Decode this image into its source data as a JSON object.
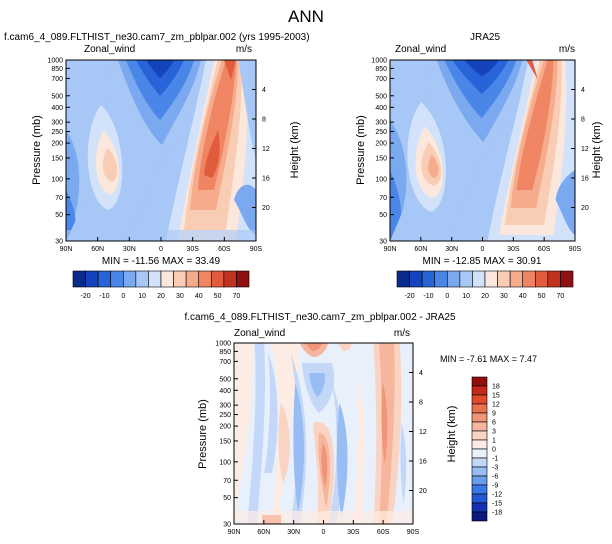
{
  "page_title": "ANN",
  "colors": {
    "zonal_wind": [
      "#0a2a8c",
      "#1543bd",
      "#2664d8",
      "#4a86e8",
      "#7aa9f0",
      "#a7c7f6",
      "#d2e2fa",
      "#fbe7dc",
      "#f9ccb4",
      "#f5ab8c",
      "#ef8562",
      "#e05c3c",
      "#c0331f",
      "#8f1111"
    ],
    "difference": [
      "#0a1a7a",
      "#1433b0",
      "#2457d6",
      "#3c78e6",
      "#6a9cee",
      "#97bdf3",
      "#c3d8f8",
      "#e8f0fc",
      "#fdece4",
      "#fad3c2",
      "#f6b69e",
      "#f19477",
      "#ea7052",
      "#df4a2e",
      "#c42816",
      "#8f0f0a"
    ]
  },
  "chart_data": [
    {
      "type": "heatmap",
      "title": "f.cam6_4_089.FLTHIST_ne30.cam7_zm_pblpar.002 (yrs 1995-2003)",
      "corner_left": "Zonal_wind",
      "corner_right": "m/s",
      "ylabel": "Pressure (mb)",
      "ylabel_right": "Height (km)",
      "x_ticks": [
        "90N",
        "60N",
        "30N",
        "0",
        "30S",
        "60S",
        "90S"
      ],
      "y_ticks": [
        "30",
        "50",
        "70",
        "100",
        "150",
        "200",
        "250",
        "300",
        "400",
        "500",
        "700",
        "850",
        "1000"
      ],
      "height_ticks": [
        "20",
        "16",
        "12",
        "8",
        "4"
      ],
      "min_max": "MIN = -11.56   MAX = 33.49",
      "colorbar_labels": [
        "-20",
        "-10",
        "0",
        "10",
        "20",
        "30",
        "40",
        "50",
        "70"
      ]
    },
    {
      "type": "heatmap",
      "title": "JRA25",
      "corner_left": "Zonal_wind",
      "corner_right": "m/s",
      "ylabel": "Pressure (mb)",
      "ylabel_right": "Height (km)",
      "x_ticks": [
        "90N",
        "60N",
        "30N",
        "0",
        "30S",
        "60S",
        "90S"
      ],
      "y_ticks": [
        "30",
        "50",
        "70",
        "100",
        "150",
        "200",
        "250",
        "300",
        "400",
        "500",
        "700",
        "850",
        "1000"
      ],
      "height_ticks": [
        "20",
        "16",
        "12",
        "8",
        "4"
      ],
      "min_max": "MIN = -12.85   MAX = 30.91",
      "colorbar_labels": [
        "-20",
        "-10",
        "0",
        "10",
        "20",
        "30",
        "40",
        "50",
        "70"
      ]
    },
    {
      "type": "heatmap",
      "title": "f.cam6_4_089.FLTHIST_ne30.cam7_zm_pblpar.002 - JRA25",
      "corner_left": "Zonal_wind",
      "corner_right": "m/s",
      "ylabel": "Pressure (mb)",
      "ylabel_right": "Height (km)",
      "x_ticks": [
        "90N",
        "60N",
        "30N",
        "0",
        "30S",
        "60S",
        "90S"
      ],
      "y_ticks": [
        "30",
        "50",
        "70",
        "100",
        "150",
        "200",
        "250",
        "300",
        "400",
        "500",
        "700",
        "850",
        "1000"
      ],
      "height_ticks": [
        "20",
        "16",
        "12",
        "8",
        "4"
      ],
      "min_max": "MIN = -7.61   MAX =  7.47",
      "colorbar_labels": [
        "18",
        "15",
        "12",
        "9",
        "6",
        "3",
        "1",
        "0",
        "-1",
        "-3",
        "-6",
        "-9",
        "-12",
        "-15",
        "-18"
      ]
    }
  ]
}
